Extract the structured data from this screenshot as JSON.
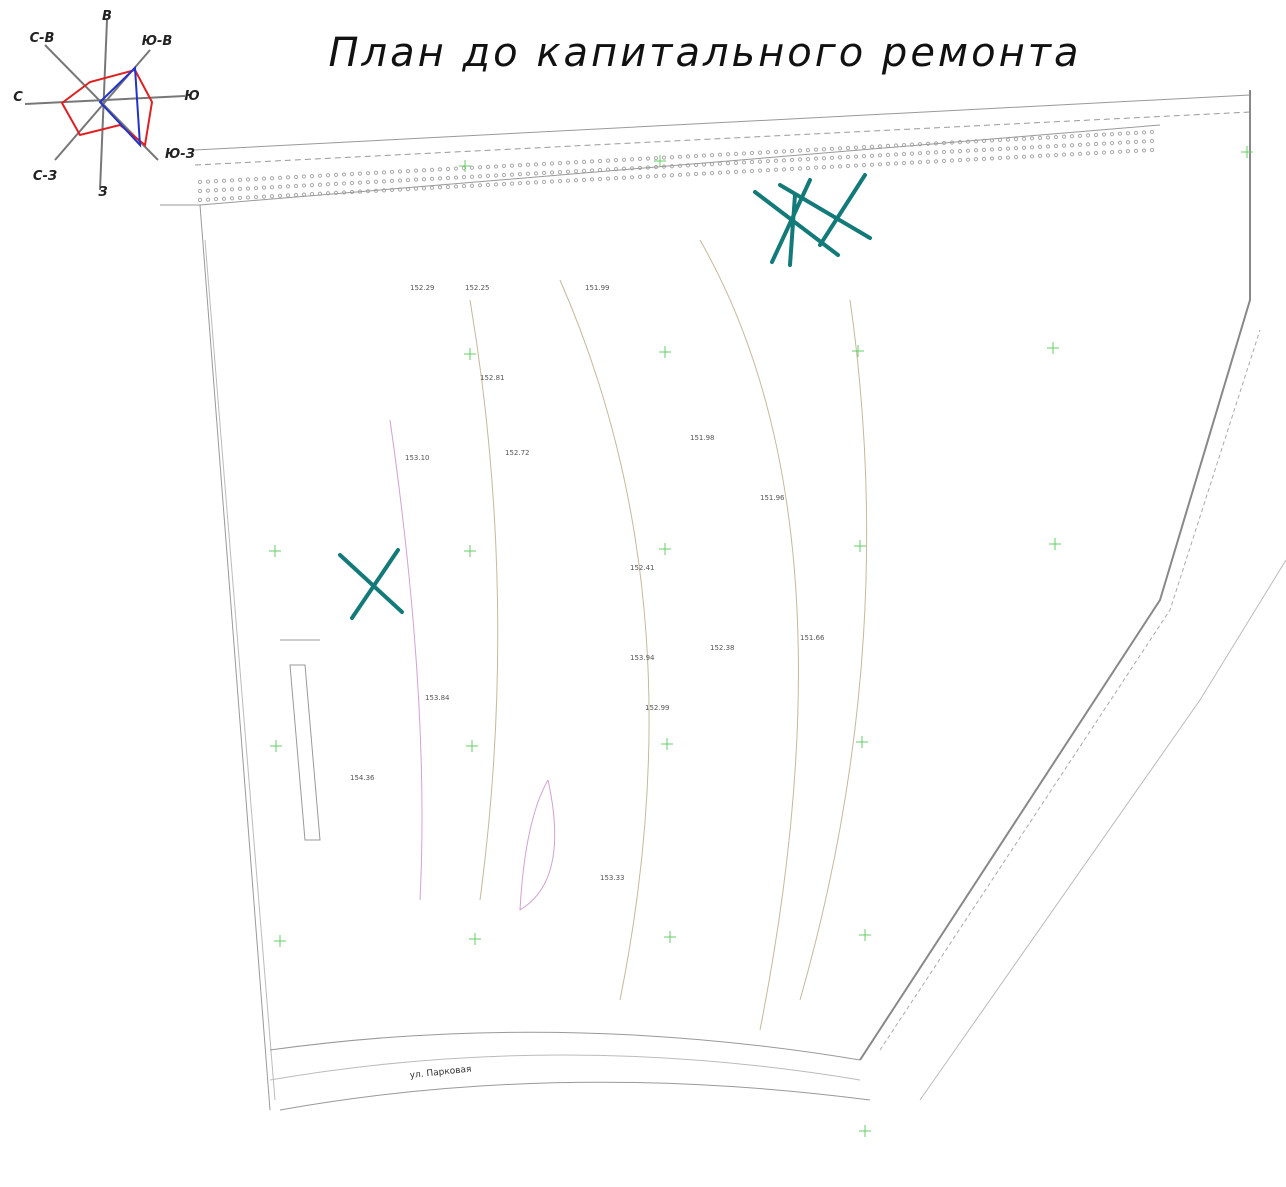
{
  "title": "План до капитального ремонта",
  "wind_rose": {
    "labels": [
      "В",
      "Ю-В",
      "Ю",
      "Ю-З",
      "З",
      "С-З",
      "С",
      "С-В"
    ]
  },
  "street": "ул. Парковая",
  "spot_heights": [
    "152.29",
    "151.99",
    "152.25",
    "153.10",
    "152.81",
    "151.98",
    "152.41",
    "153.94",
    "151.96",
    "152.99",
    "153.84",
    "152.72",
    "154.36",
    "151.66",
    "152.38",
    "153.33"
  ]
}
